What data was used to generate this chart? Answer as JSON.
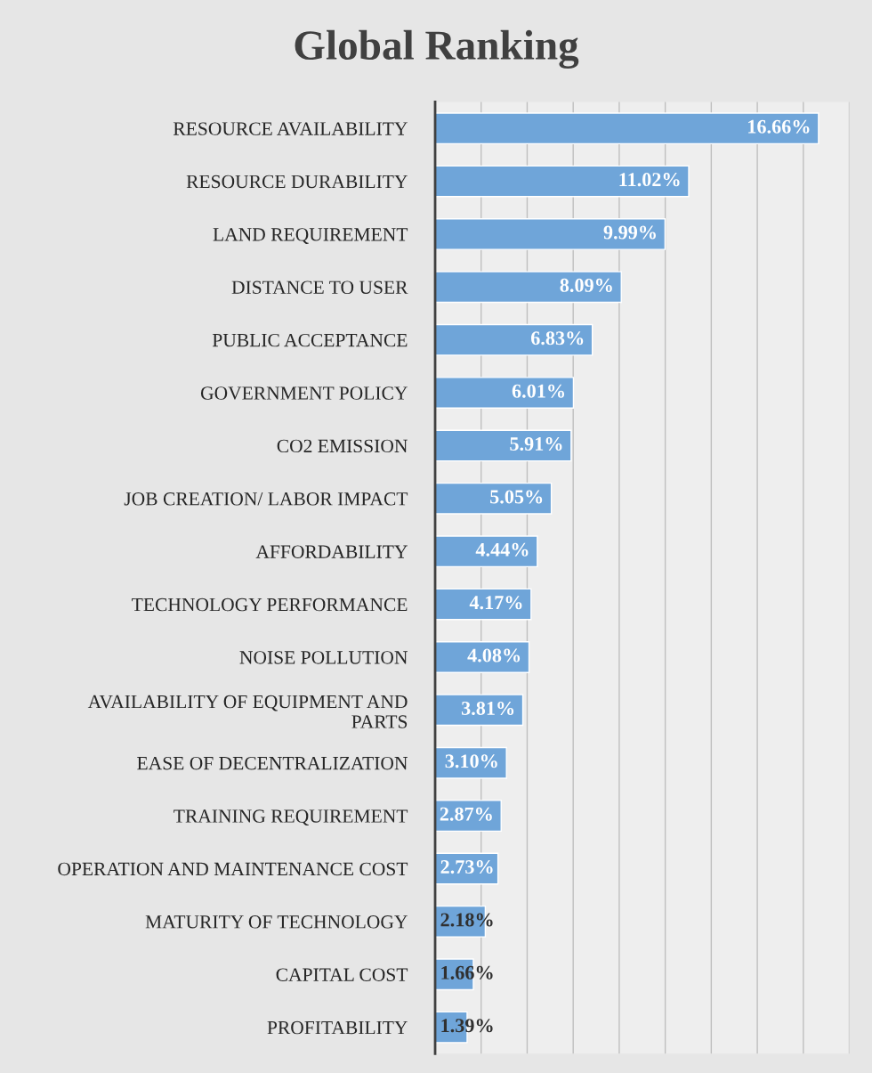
{
  "chart_data": {
    "type": "bar",
    "orientation": "horizontal",
    "title": "Global Ranking",
    "categories": [
      "RESOURCE AVAILABILITY",
      "RESOURCE DURABILITY",
      "LAND REQUIREMENT",
      "DISTANCE TO USER",
      "PUBLIC ACCEPTANCE",
      "GOVERNMENT POLICY",
      "CO2 EMISSION",
      "JOB CREATION/ LABOR IMPACT",
      "AFFORDABILITY",
      "TECHNOLOGY PERFORMANCE",
      "NOISE POLLUTION",
      "AVAILABILITY OF EQUIPMENT AND PARTS",
      "EASE OF DECENTRALIZATION",
      "TRAINING REQUIREMENT",
      "OPERATION AND MAINTENANCE COST",
      "MATURITY OF TECHNOLOGY",
      "CAPITAL COST",
      "PROFITABILITY"
    ],
    "values": [
      16.66,
      11.02,
      9.99,
      8.09,
      6.83,
      6.01,
      5.91,
      5.05,
      4.44,
      4.17,
      4.08,
      3.81,
      3.1,
      2.87,
      2.73,
      2.18,
      1.66,
      1.39
    ],
    "value_labels": [
      "16.66%",
      "11.02%",
      "9.99%",
      "8.09%",
      "6.83%",
      "6.01%",
      "5.91%",
      "5.05%",
      "4.44%",
      "4.17%",
      "4.08%",
      "3.81%",
      "3.10%",
      "2.87%",
      "2.73%",
      "2.18%",
      "1.66%",
      "1.39%"
    ],
    "color": "#6fa5d9",
    "xlim": [
      0,
      18
    ],
    "xticks": [
      {
        "value": 0,
        "label": null
      },
      {
        "value": 2,
        "label": null
      },
      {
        "value": 4,
        "label": null
      },
      {
        "value": 6,
        "label": null
      },
      {
        "value": 8,
        "label": null
      },
      {
        "value": 10,
        "label": null
      },
      {
        "value": 12,
        "label": null
      },
      {
        "value": 14,
        "label": null
      },
      {
        "value": 16,
        "label": null
      },
      {
        "value": 18,
        "label": null
      }
    ],
    "grid": "x",
    "tick_labels": "y"
  }
}
